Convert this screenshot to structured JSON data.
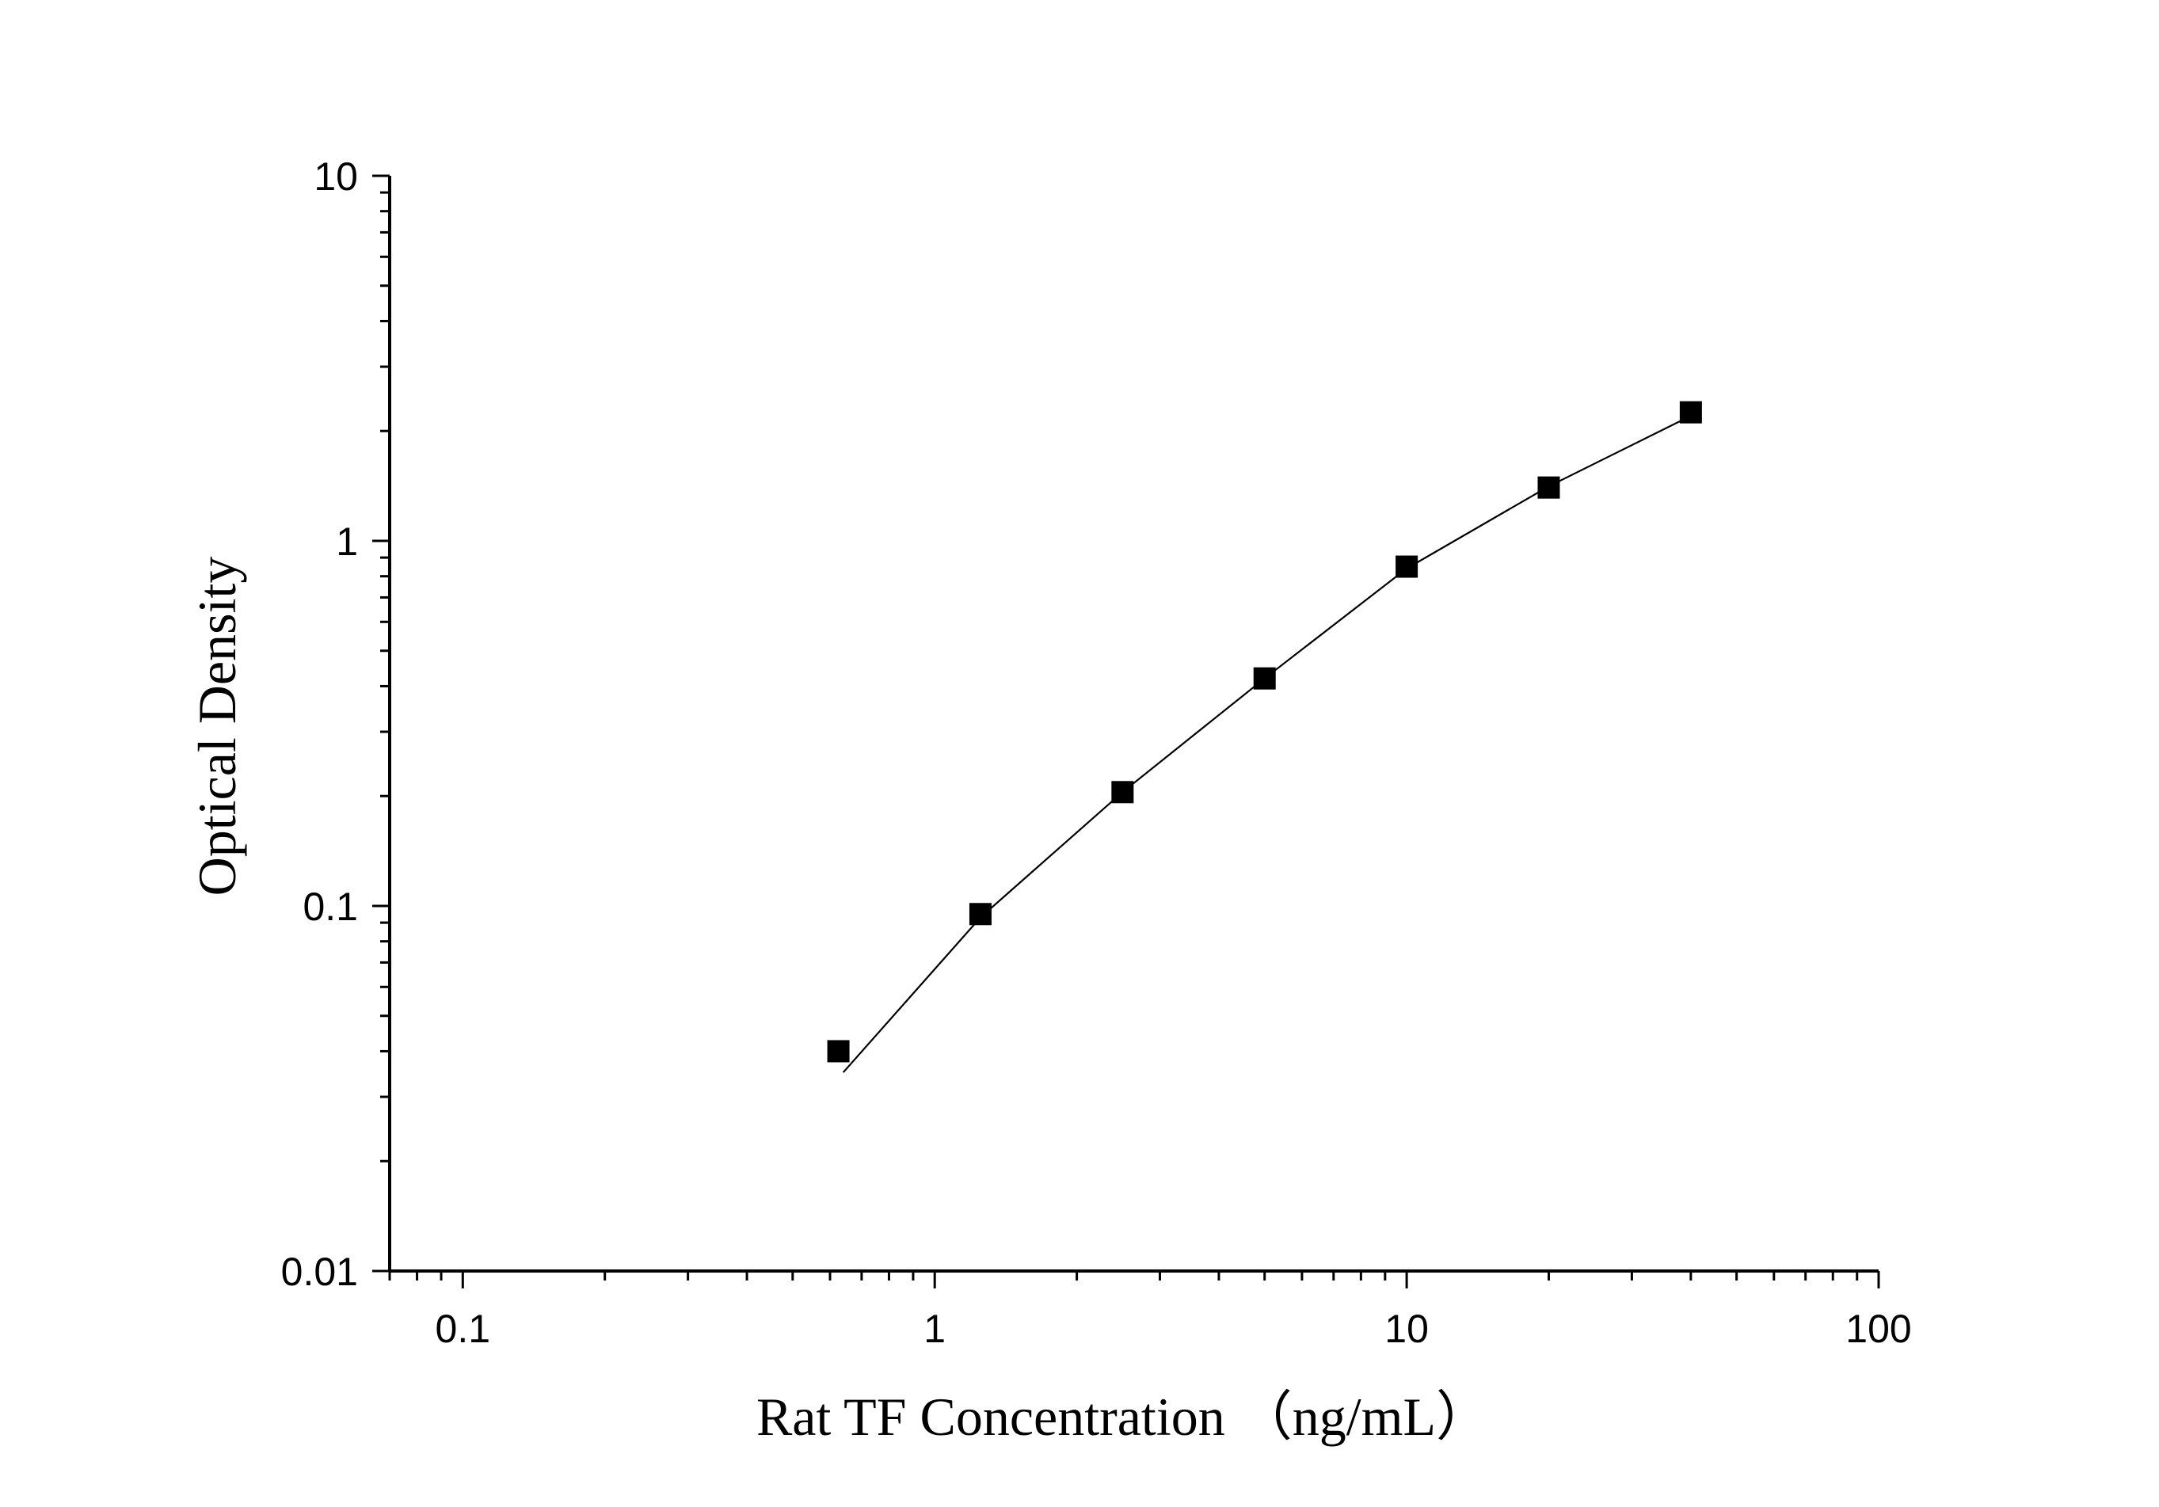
{
  "chart_data": {
    "type": "scatter",
    "xlabel": "Rat TF Concentration （ng/mL）",
    "ylabel": "Optical Density",
    "x_scale": "log",
    "y_scale": "log",
    "xlim": [
      0.07,
      100
    ],
    "ylim": [
      0.01,
      10
    ],
    "x_ticks": [
      "0.1",
      "1",
      "10",
      "100"
    ],
    "x_tick_values": [
      0.1,
      1,
      10,
      100
    ],
    "y_ticks": [
      "0.01",
      "0.1",
      "1",
      "10"
    ],
    "y_tick_values": [
      0.01,
      0.1,
      1,
      10
    ],
    "grid": false,
    "legend": "none",
    "marker": "square",
    "marker_color": "#000000",
    "line_color": "#000000",
    "points": [
      {
        "x": 0.625,
        "y": 0.04
      },
      {
        "x": 1.25,
        "y": 0.095
      },
      {
        "x": 2.5,
        "y": 0.205
      },
      {
        "x": 5,
        "y": 0.42
      },
      {
        "x": 10,
        "y": 0.85
      },
      {
        "x": 20,
        "y": 1.4
      },
      {
        "x": 40,
        "y": 2.25
      }
    ],
    "fit_curve": [
      {
        "x": 0.64,
        "y": 0.035
      },
      {
        "x": 1.25,
        "y": 0.093
      },
      {
        "x": 2.5,
        "y": 0.205
      },
      {
        "x": 5,
        "y": 0.42
      },
      {
        "x": 10,
        "y": 0.84
      },
      {
        "x": 20,
        "y": 1.41
      },
      {
        "x": 40,
        "y": 2.2
      }
    ]
  }
}
